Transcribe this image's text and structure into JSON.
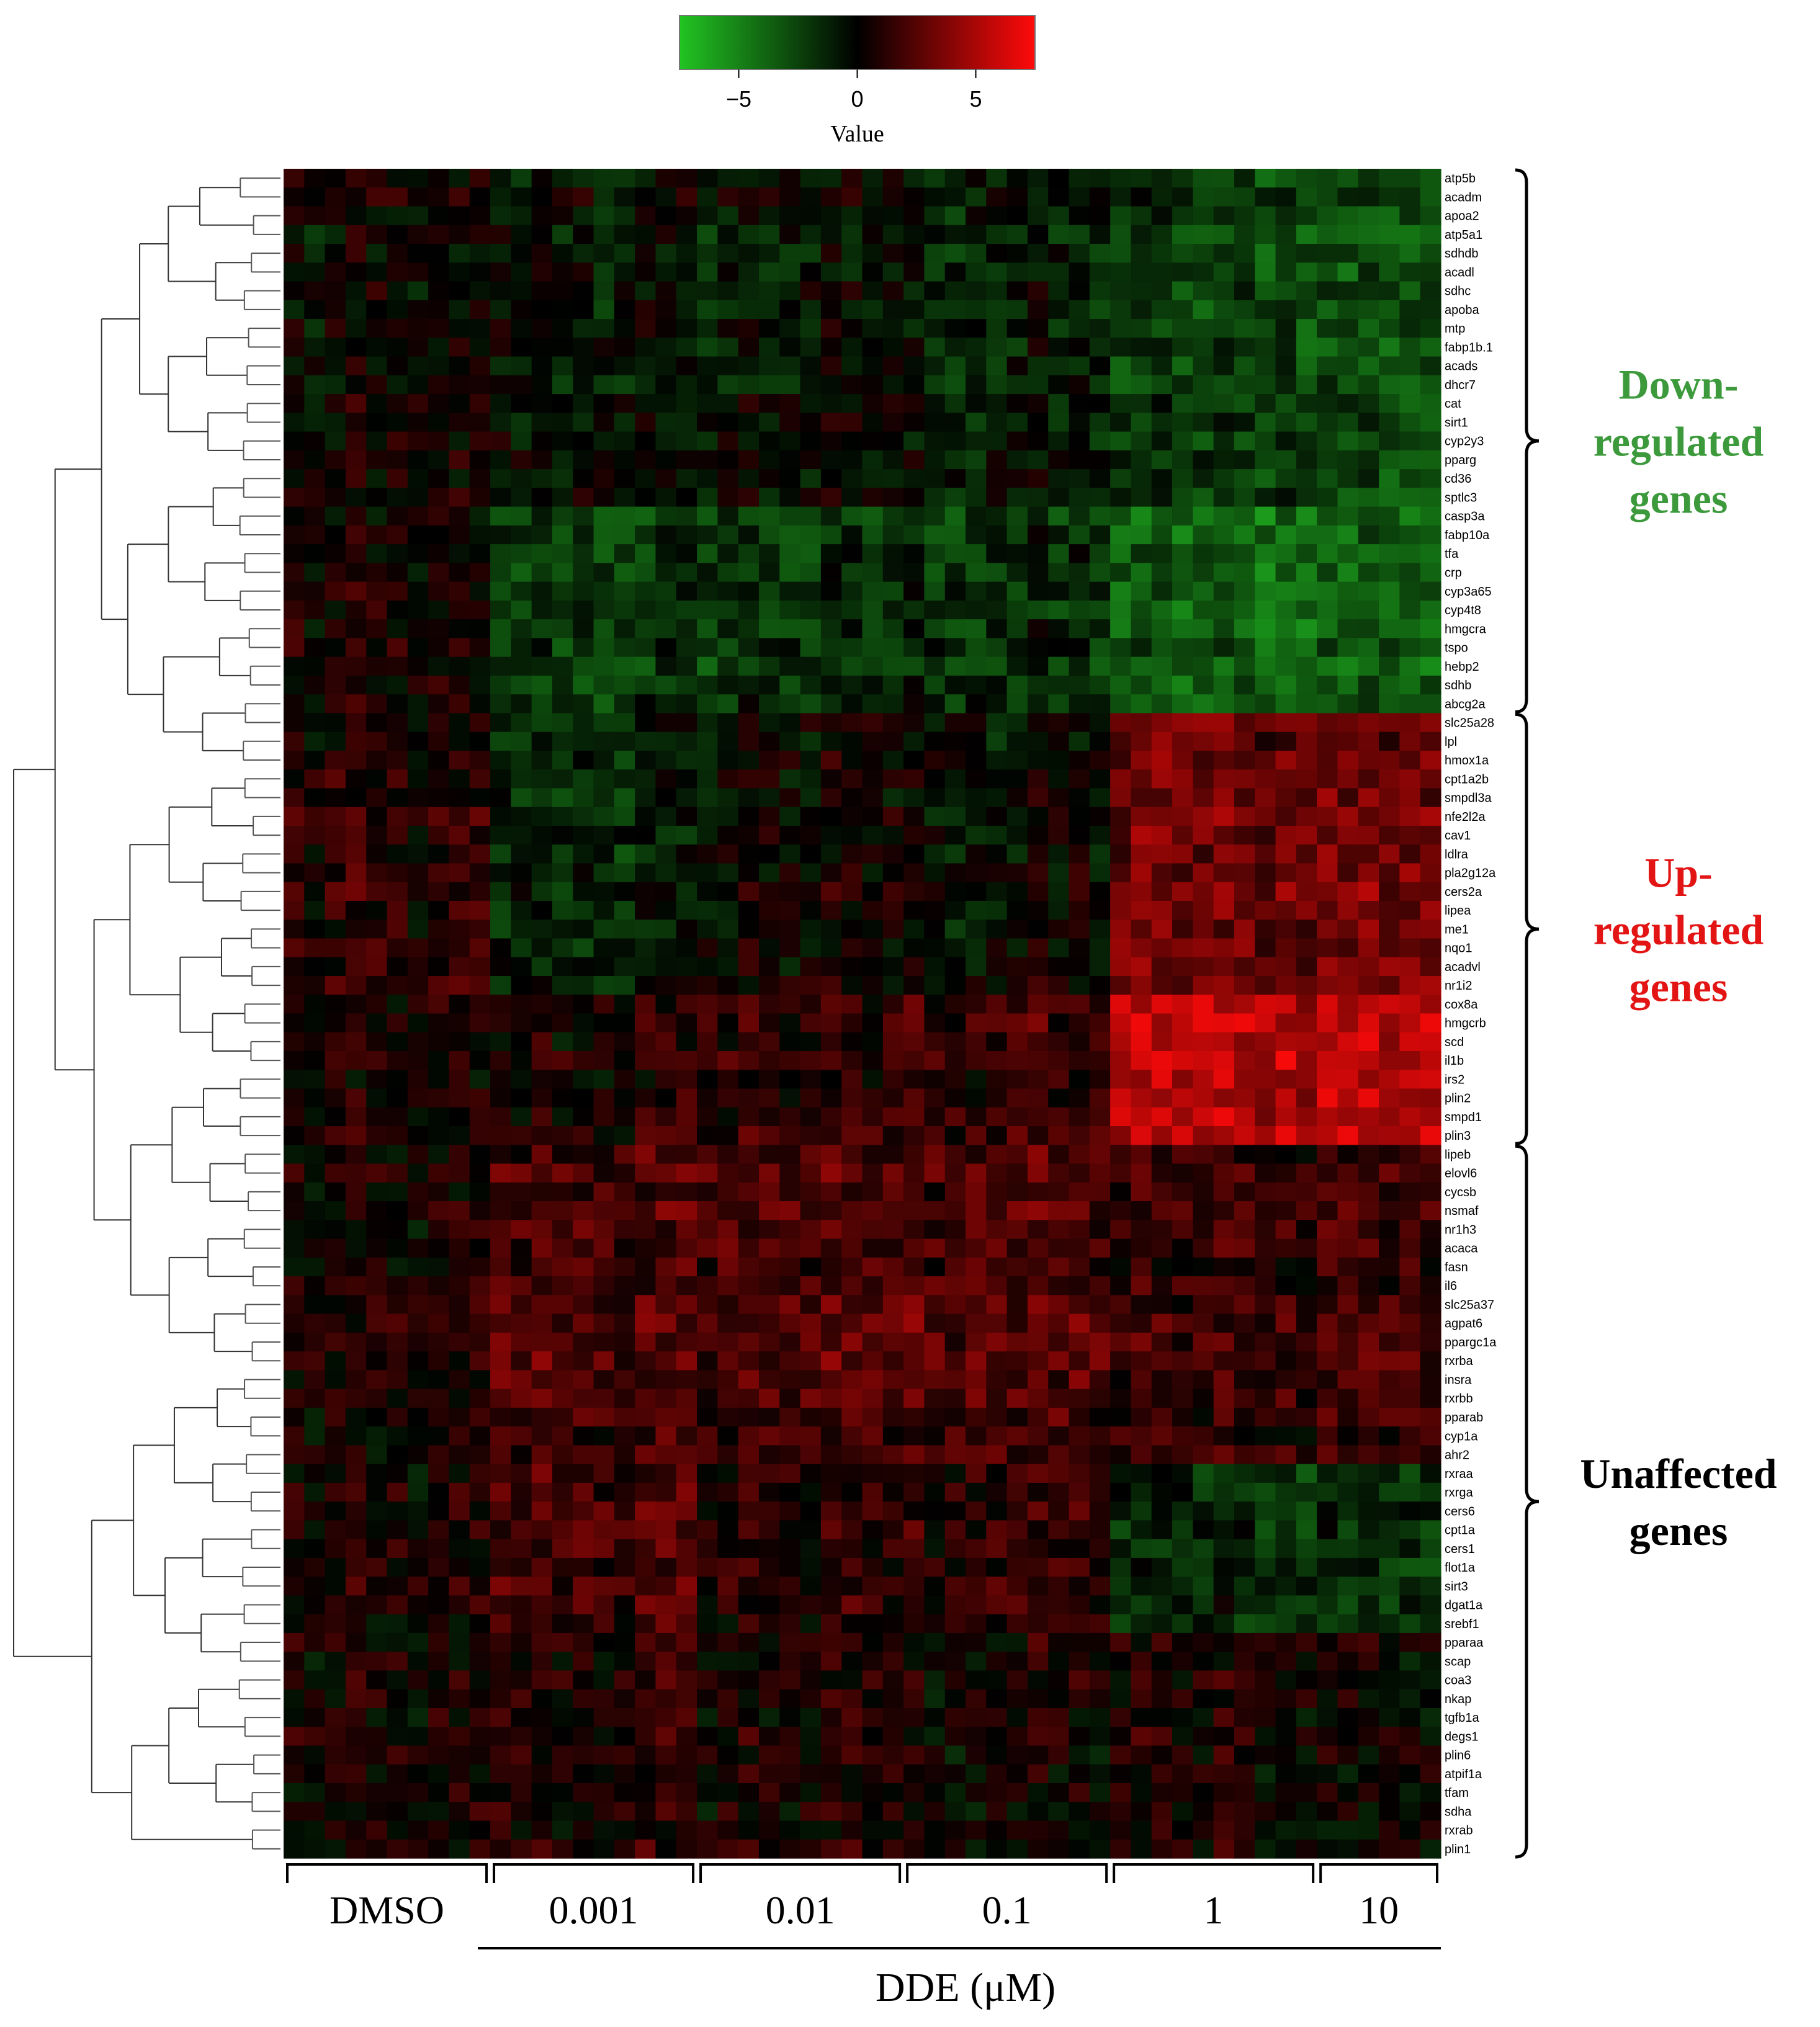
{
  "chart_data": {
    "type": "heatmap",
    "color_key": {
      "label": "Value",
      "ticks": [
        -5,
        0,
        5
      ],
      "range": [
        -7.5,
        7.5
      ],
      "colors": {
        "low": "#22c422",
        "mid": "#000000",
        "high": "#ff0a0a"
      }
    },
    "dendrogram": "rows",
    "rows": [
      "atp5b",
      "acadm",
      "apoa2",
      "atp5a1",
      "sdhdb",
      "acadl",
      "sdhc",
      "apoba",
      "mtp",
      "fabp1b.1",
      "acads",
      "dhcr7",
      "cat",
      "sirt1",
      "cyp2y3",
      "pparg",
      "cd36",
      "sptlc3",
      "casp3a",
      "fabp10a",
      "tfa",
      "crp",
      "cyp3a65",
      "cyp4t8",
      "hmgcra",
      "tspo",
      "hebp2",
      "sdhb",
      "abcg2a",
      "slc25a28",
      "lpl",
      "hmox1a",
      "cpt1a2b",
      "smpdl3a",
      "nfe2l2a",
      "cav1",
      "ldlra",
      "pla2g12a",
      "cers2a",
      "lipea",
      "me1",
      "nqo1",
      "acadvl",
      "nr1i2",
      "cox8a",
      "hmgcrb",
      "scd",
      "il1b",
      "irs2",
      "plin2",
      "smpd1",
      "plin3",
      "lipeb",
      "elovl6",
      "cycsb",
      "nsmaf",
      "nr1h3",
      "acaca",
      "fasn",
      "il6",
      "slc25a37",
      "agpat6",
      "ppargc1a",
      "rxrba",
      "insra",
      "rxrbb",
      "pparab",
      "cyp1a",
      "ahr2",
      "rxraa",
      "rxrga",
      "cers6",
      "cpt1a",
      "cers1",
      "flot1a",
      "sirt3",
      "dgat1a",
      "srebf1",
      "pparaa",
      "scap",
      "coa3",
      "nkap",
      "tgfb1a",
      "degs1",
      "plin6",
      "atpif1a",
      "tfam",
      "sdha",
      "rxrab",
      "plin1"
    ],
    "column_groups": [
      {
        "label": "DMSO",
        "columns": 10
      },
      {
        "label": "0.001",
        "columns": 10
      },
      {
        "label": "0.01",
        "columns": 10
      },
      {
        "label": "0.1",
        "columns": 10
      },
      {
        "label": "1",
        "columns": 10
      },
      {
        "label": "10",
        "columns": 6
      }
    ],
    "xlabel": "DDE (μM)",
    "gene_groups": [
      {
        "label": [
          "Down-",
          "regulated",
          "genes"
        ],
        "rows": [
          "atp5b",
          "abcg2a"
        ],
        "color": "#3c9a3c"
      },
      {
        "label": [
          "Up-",
          "regulated",
          "genes"
        ],
        "rows": [
          "slc25a28",
          "plin3"
        ],
        "color": "#e31414"
      },
      {
        "label": [
          "Unaffected",
          "genes"
        ],
        "rows": [
          "lipeb",
          "plin1"
        ],
        "color": "#000000"
      }
    ],
    "cluster_means": [
      {
        "rows": [
          "atp5b",
          "sptlc3"
        ],
        "by_group": [
          0.0,
          -0.4,
          -0.5,
          -0.9,
          -2.2,
          -2.6
        ]
      },
      {
        "rows": [
          "casp3a",
          "abcg2a"
        ],
        "by_group": [
          0.4,
          -2.2,
          -1.8,
          -1.6,
          -3.6,
          -3.4
        ]
      },
      {
        "rows": [
          "slc25a28",
          "nr1i2"
        ],
        "by_group": [
          0.8,
          -1.4,
          0.0,
          -0.3,
          3.0,
          3.2
        ]
      },
      {
        "rows": [
          "cox8a",
          "plin3"
        ],
        "by_group": [
          0.3,
          0.8,
          1.2,
          1.5,
          5.2,
          5.5
        ]
      },
      {
        "rows": [
          "lipeb",
          "ahr2"
        ],
        "by_group": [
          0.3,
          2.0,
          2.1,
          2.2,
          1.4,
          1.8
        ]
      },
      {
        "rows": [
          "rxraa",
          "srebf1"
        ],
        "by_group": [
          0.4,
          1.8,
          1.0,
          1.2,
          -1.5,
          -1.8
        ]
      },
      {
        "rows": [
          "pparaa",
          "plin1"
        ],
        "by_group": [
          0.4,
          1.0,
          0.6,
          0.4,
          0.6,
          0.3
        ]
      }
    ]
  }
}
